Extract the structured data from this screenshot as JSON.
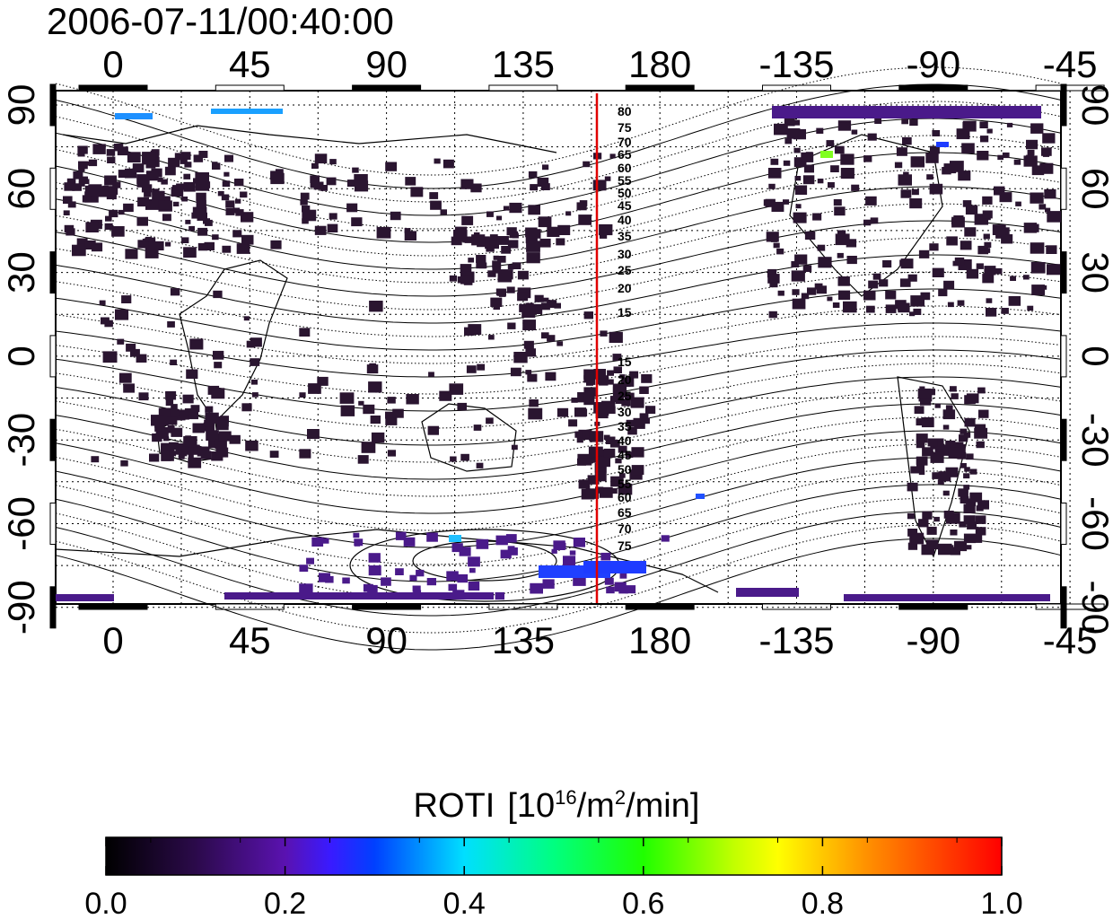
{
  "title": "2006-07-11/00:40:00",
  "x_ticks": [
    "0",
    "45",
    "90",
    "135",
    "180",
    "-135",
    "-90",
    "-45"
  ],
  "y_ticks": [
    "90",
    "60",
    "30",
    "0",
    "-30",
    "-60",
    "-90"
  ],
  "contour_labels": [
    "80",
    "75",
    "70",
    "65",
    "60",
    "55",
    "50",
    "45",
    "40",
    "35",
    "30",
    "25",
    "20",
    "15",
    "15",
    "20",
    "25",
    "30",
    "35",
    "40",
    "45",
    "50",
    "55",
    "60",
    "65",
    "70",
    "75"
  ],
  "colorbar": {
    "title_main": "ROTI",
    "title_units": "[10",
    "title_exp": "16",
    "title_units2": "/m",
    "title_exp2": "2",
    "title_units3": "/min]",
    "ticks": [
      "0.0",
      "0.2",
      "0.4",
      "0.6",
      "0.8",
      "1.0"
    ]
  },
  "colors": {
    "meridian_line": "#e00000",
    "data_dark": "#2a1530",
    "data_purple": "#4a1a8a",
    "data_blue": "#1e3cff"
  },
  "meridian_longitude": 170
}
